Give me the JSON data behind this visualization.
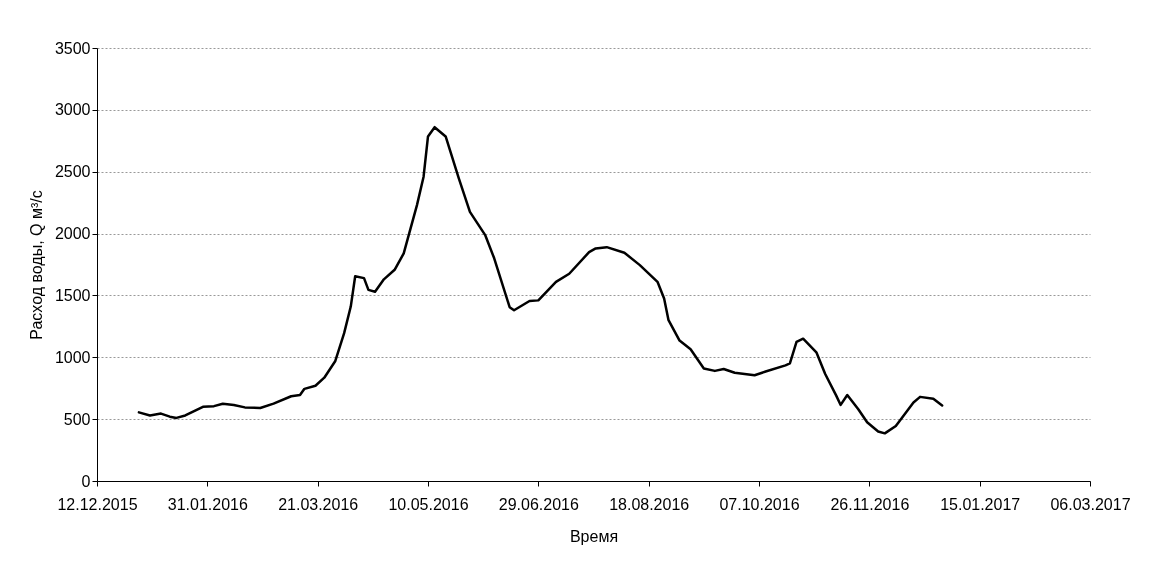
{
  "chart_data": {
    "type": "line",
    "xlabel": "Время",
    "ylabel": "Расход воды, Q м³/с",
    "x": [
      "2015-12-31",
      "2016-01-05",
      "2016-01-10",
      "2016-01-14",
      "2016-01-17",
      "2016-01-21",
      "2016-01-29",
      "2016-02-03",
      "2016-02-07",
      "2016-02-12",
      "2016-02-17",
      "2016-02-24",
      "2016-03-01",
      "2016-03-09",
      "2016-03-13",
      "2016-03-15",
      "2016-03-20",
      "2016-03-24",
      "2016-03-29",
      "2016-04-02",
      "2016-04-05",
      "2016-04-07",
      "2016-04-11",
      "2016-04-13",
      "2016-04-16",
      "2016-04-20",
      "2016-04-25",
      "2016-04-29",
      "2016-05-05",
      "2016-05-08",
      "2016-05-10",
      "2016-05-13",
      "2016-05-18",
      "2016-05-24",
      "2016-05-29",
      "2016-06-05",
      "2016-06-09",
      "2016-06-16",
      "2016-06-18",
      "2016-06-25",
      "2016-06-29",
      "2016-07-07",
      "2016-07-13",
      "2016-07-22",
      "2016-07-25",
      "2016-07-30",
      "2016-08-07",
      "2016-08-14",
      "2016-08-22",
      "2016-08-25",
      "2016-08-27",
      "2016-09-01",
      "2016-09-06",
      "2016-09-12",
      "2016-09-17",
      "2016-09-21",
      "2016-09-26",
      "2016-10-05",
      "2016-10-10",
      "2016-10-19",
      "2016-10-21",
      "2016-10-24",
      "2016-10-27",
      "2016-11-02",
      "2016-11-06",
      "2016-11-11",
      "2016-11-13",
      "2016-11-16",
      "2016-11-21",
      "2016-11-25",
      "2016-11-30",
      "2016-12-03",
      "2016-12-08",
      "2016-12-16",
      "2016-12-19",
      "2016-12-25",
      "2016-12-29"
    ],
    "series": [
      {
        "color": "#000000",
        "values": [
          555,
          530,
          545,
          520,
          510,
          530,
          600,
          605,
          625,
          615,
          595,
          590,
          625,
          685,
          695,
          745,
          770,
          835,
          970,
          1195,
          1410,
          1655,
          1640,
          1545,
          1530,
          1630,
          1710,
          1840,
          2230,
          2460,
          2785,
          2860,
          2785,
          2445,
          2175,
          1985,
          1800,
          1405,
          1380,
          1455,
          1460,
          1610,
          1675,
          1850,
          1880,
          1890,
          1845,
          1745,
          1610,
          1475,
          1300,
          1135,
          1065,
          910,
          890,
          905,
          875,
          855,
          885,
          935,
          950,
          1125,
          1150,
          1040,
          865,
          690,
          615,
          695,
          580,
          475,
          400,
          385,
          445,
          635,
          680,
          665,
          610
        ]
      }
    ],
    "xlim": [
      "2015-12-12",
      "2017-03-06"
    ],
    "xticks": [
      {
        "value": "2015-12-12",
        "label": "12.12.2015"
      },
      {
        "value": "2016-01-31",
        "label": "31.01.2016"
      },
      {
        "value": "2016-03-21",
        "label": "21.03.2016"
      },
      {
        "value": "2016-05-10",
        "label": "10.05.2016"
      },
      {
        "value": "2016-06-29",
        "label": "29.06.2016"
      },
      {
        "value": "2016-08-18",
        "label": "18.08.2016"
      },
      {
        "value": "2016-10-07",
        "label": "07.10.2016"
      },
      {
        "value": "2016-11-26",
        "label": "26.11.2016"
      },
      {
        "value": "2017-01-15",
        "label": "15.01.2017"
      },
      {
        "value": "2017-03-06",
        "label": "06.03.2017"
      }
    ],
    "ylim": [
      0,
      3500
    ],
    "yticks": [
      0,
      500,
      1000,
      1500,
      2000,
      2500,
      3000,
      3500
    ],
    "grid": "y",
    "legend": false,
    "marker": "none",
    "line_style": "solid"
  }
}
